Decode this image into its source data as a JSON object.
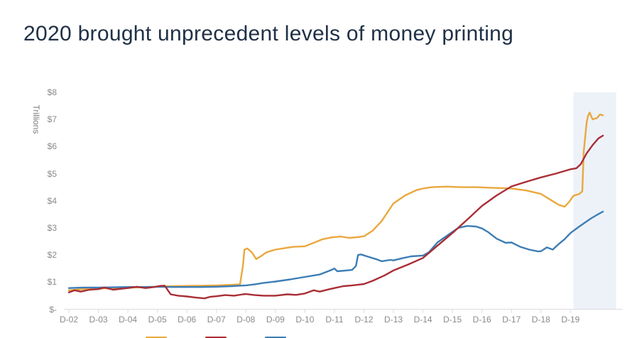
{
  "title": "2020 brought unprecedent levels of money printing",
  "chart_data": {
    "type": "line",
    "title": "2020 brought unprecedent levels of money printing",
    "ylabel": "Trillions",
    "xlabel": "",
    "ylim": [
      0,
      8
    ],
    "grid": false,
    "y_ticks": [
      "$-",
      "$1",
      "$2",
      "$3",
      "$4",
      "$5",
      "$6",
      "$7",
      "$8"
    ],
    "x_ticks": [
      "D-02",
      "D-03",
      "D-04",
      "D-05",
      "D-06",
      "D-07",
      "D-08",
      "D-09",
      "D-10",
      "D-11",
      "D-12",
      "D-13",
      "D-14",
      "D-15",
      "D-16",
      "D-17",
      "D-18",
      "D-19"
    ],
    "x_unit": "years-after-Dec-2002",
    "highlight_band": {
      "t_from": 17.1,
      "t_to": 18.55,
      "color": "#EDF2F9"
    },
    "axis_color": "#DCDCDC",
    "series": [
      {
        "name": "gold-line",
        "color": "#E9A83E",
        "points": [
          [
            0,
            0.7
          ],
          [
            0.5,
            0.74
          ],
          [
            1,
            0.76
          ],
          [
            1.5,
            0.78
          ],
          [
            2,
            0.79
          ],
          [
            2.5,
            0.81
          ],
          [
            3,
            0.83
          ],
          [
            3.5,
            0.85
          ],
          [
            4,
            0.86
          ],
          [
            4.5,
            0.87
          ],
          [
            5,
            0.88
          ],
          [
            5.5,
            0.9
          ],
          [
            5.8,
            0.92
          ],
          [
            5.9,
            1.6
          ],
          [
            5.95,
            2.2
          ],
          [
            6.05,
            2.24
          ],
          [
            6.2,
            2.1
          ],
          [
            6.35,
            1.85
          ],
          [
            6.5,
            1.95
          ],
          [
            6.7,
            2.1
          ],
          [
            7,
            2.2
          ],
          [
            7.3,
            2.25
          ],
          [
            7.6,
            2.3
          ],
          [
            8,
            2.32
          ],
          [
            8.3,
            2.45
          ],
          [
            8.6,
            2.58
          ],
          [
            8.9,
            2.65
          ],
          [
            9.2,
            2.68
          ],
          [
            9.5,
            2.63
          ],
          [
            9.8,
            2.66
          ],
          [
            10,
            2.69
          ],
          [
            10.3,
            2.9
          ],
          [
            10.6,
            3.25
          ],
          [
            11,
            3.9
          ],
          [
            11.4,
            4.2
          ],
          [
            11.8,
            4.4
          ],
          [
            12,
            4.45
          ],
          [
            12.3,
            4.5
          ],
          [
            12.8,
            4.52
          ],
          [
            13.3,
            4.5
          ],
          [
            13.8,
            4.5
          ],
          [
            14.3,
            4.48
          ],
          [
            14.8,
            4.46
          ],
          [
            15,
            4.45
          ],
          [
            15.5,
            4.38
          ],
          [
            16,
            4.25
          ],
          [
            16.3,
            4.05
          ],
          [
            16.6,
            3.85
          ],
          [
            16.8,
            3.78
          ],
          [
            16.95,
            3.95
          ],
          [
            17.1,
            4.18
          ],
          [
            17.3,
            4.25
          ],
          [
            17.4,
            4.35
          ],
          [
            17.45,
            5.8
          ],
          [
            17.55,
            6.9
          ],
          [
            17.6,
            7.15
          ],
          [
            17.65,
            7.25
          ],
          [
            17.75,
            7.0
          ],
          [
            17.9,
            7.05
          ],
          [
            18,
            7.18
          ],
          [
            18.1,
            7.15
          ]
        ]
      },
      {
        "name": "blue-line",
        "color": "#3C7EB5",
        "points": [
          [
            0,
            0.78
          ],
          [
            0.5,
            0.8
          ],
          [
            1,
            0.8
          ],
          [
            1.5,
            0.81
          ],
          [
            2,
            0.82
          ],
          [
            2.5,
            0.82
          ],
          [
            3,
            0.83
          ],
          [
            3.5,
            0.82
          ],
          [
            4,
            0.82
          ],
          [
            4.5,
            0.82
          ],
          [
            5,
            0.83
          ],
          [
            5.5,
            0.85
          ],
          [
            5.8,
            0.87
          ],
          [
            6,
            0.88
          ],
          [
            6.3,
            0.92
          ],
          [
            6.6,
            0.97
          ],
          [
            7,
            1.02
          ],
          [
            7.5,
            1.1
          ],
          [
            8,
            1.19
          ],
          [
            8.5,
            1.28
          ],
          [
            8.9,
            1.45
          ],
          [
            9,
            1.5
          ],
          [
            9.1,
            1.4
          ],
          [
            9.4,
            1.43
          ],
          [
            9.6,
            1.45
          ],
          [
            9.73,
            1.6
          ],
          [
            9.8,
            2.0
          ],
          [
            9.9,
            2.02
          ],
          [
            10.1,
            1.95
          ],
          [
            10.4,
            1.85
          ],
          [
            10.6,
            1.77
          ],
          [
            10.9,
            1.82
          ],
          [
            11,
            1.8
          ],
          [
            11.3,
            1.88
          ],
          [
            11.6,
            1.95
          ],
          [
            11.9,
            1.97
          ],
          [
            12,
            1.98
          ],
          [
            12.2,
            2.1
          ],
          [
            12.5,
            2.47
          ],
          [
            12.8,
            2.7
          ],
          [
            13,
            2.85
          ],
          [
            13.2,
            3.0
          ],
          [
            13.5,
            3.07
          ],
          [
            13.8,
            3.05
          ],
          [
            14,
            2.98
          ],
          [
            14.2,
            2.85
          ],
          [
            14.5,
            2.6
          ],
          [
            14.8,
            2.45
          ],
          [
            15,
            2.46
          ],
          [
            15.3,
            2.3
          ],
          [
            15.6,
            2.2
          ],
          [
            15.9,
            2.13
          ],
          [
            16,
            2.14
          ],
          [
            16.2,
            2.28
          ],
          [
            16.4,
            2.2
          ],
          [
            16.6,
            2.4
          ],
          [
            16.8,
            2.58
          ],
          [
            17,
            2.81
          ],
          [
            17.3,
            3.05
          ],
          [
            17.5,
            3.2
          ],
          [
            17.7,
            3.35
          ],
          [
            17.9,
            3.48
          ],
          [
            18.1,
            3.6
          ]
        ]
      },
      {
        "name": "red-line",
        "color": "#A92E35",
        "points": [
          [
            0,
            0.62
          ],
          [
            0.2,
            0.7
          ],
          [
            0.4,
            0.65
          ],
          [
            0.7,
            0.72
          ],
          [
            1,
            0.74
          ],
          [
            1.2,
            0.8
          ],
          [
            1.5,
            0.72
          ],
          [
            1.8,
            0.76
          ],
          [
            2,
            0.78
          ],
          [
            2.3,
            0.83
          ],
          [
            2.6,
            0.78
          ],
          [
            2.9,
            0.82
          ],
          [
            3.1,
            0.86
          ],
          [
            3.25,
            0.87
          ],
          [
            3.45,
            0.55
          ],
          [
            3.7,
            0.5
          ],
          [
            4,
            0.47
          ],
          [
            4.3,
            0.43
          ],
          [
            4.6,
            0.4
          ],
          [
            4.8,
            0.46
          ],
          [
            5,
            0.48
          ],
          [
            5.3,
            0.52
          ],
          [
            5.6,
            0.5
          ],
          [
            5.9,
            0.55
          ],
          [
            6,
            0.56
          ],
          [
            6.3,
            0.52
          ],
          [
            6.6,
            0.5
          ],
          [
            7,
            0.5
          ],
          [
            7.4,
            0.55
          ],
          [
            7.7,
            0.53
          ],
          [
            8,
            0.58
          ],
          [
            8.3,
            0.7
          ],
          [
            8.5,
            0.65
          ],
          [
            8.8,
            0.73
          ],
          [
            9,
            0.78
          ],
          [
            9.3,
            0.85
          ],
          [
            9.6,
            0.88
          ],
          [
            10,
            0.93
          ],
          [
            10.3,
            1.05
          ],
          [
            10.7,
            1.25
          ],
          [
            11,
            1.43
          ],
          [
            11.5,
            1.65
          ],
          [
            12,
            1.89
          ],
          [
            12.5,
            2.35
          ],
          [
            13,
            2.81
          ],
          [
            13.5,
            3.3
          ],
          [
            14,
            3.81
          ],
          [
            14.5,
            4.2
          ],
          [
            15,
            4.53
          ],
          [
            15.5,
            4.7
          ],
          [
            16,
            4.86
          ],
          [
            16.5,
            5.0
          ],
          [
            17,
            5.16
          ],
          [
            17.2,
            5.2
          ],
          [
            17.35,
            5.35
          ],
          [
            17.55,
            5.75
          ],
          [
            17.75,
            6.05
          ],
          [
            17.95,
            6.3
          ],
          [
            18.1,
            6.4
          ]
        ]
      }
    ],
    "legend": {
      "clipped_at_bottom": true,
      "items": [
        {
          "swatch_color": "#E9A83E",
          "label": ""
        },
        {
          "swatch_color": "#A92E35",
          "label": ""
        },
        {
          "swatch_color": "#3C7EB5",
          "label": ""
        }
      ]
    }
  }
}
